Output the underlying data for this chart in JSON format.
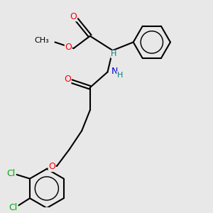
{
  "bg_color": "#e8e8e8",
  "bond_color": "#000000",
  "bond_width": 1.5,
  "atom_colors": {
    "O": "#ff0000",
    "N": "#0000cc",
    "Cl": "#00aa00",
    "C": "#000000",
    "H": "#008080"
  },
  "font_size": 9,
  "figsize": [
    3.0,
    3.0
  ],
  "dpi": 100
}
